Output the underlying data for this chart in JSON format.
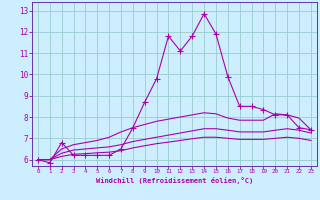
{
  "xlabel": "Windchill (Refroidissement éolien,°C)",
  "bg_color": "#cceeff",
  "line_color": "#aa00aa",
  "grid_color": "#99cccc",
  "spine_color": "#6633aa",
  "xlim": [
    -0.5,
    23.5
  ],
  "ylim": [
    5.7,
    13.4
  ],
  "xticks": [
    0,
    1,
    2,
    3,
    4,
    5,
    6,
    7,
    8,
    9,
    10,
    11,
    12,
    13,
    14,
    15,
    16,
    17,
    18,
    19,
    20,
    21,
    22,
    23
  ],
  "yticks": [
    6,
    7,
    8,
    9,
    10,
    11,
    12,
    13
  ],
  "series": [
    {
      "marker": true,
      "x": [
        0,
        1,
        2,
        3,
        4,
        5,
        6,
        7,
        8,
        9,
        10,
        11,
        12,
        13,
        14,
        15,
        16,
        17,
        18,
        19,
        20,
        21,
        22,
        23
      ],
      "y": [
        6.0,
        5.85,
        6.8,
        6.2,
        6.2,
        6.2,
        6.2,
        6.5,
        7.5,
        8.7,
        9.8,
        11.8,
        11.1,
        11.8,
        12.85,
        11.9,
        9.9,
        8.5,
        8.5,
        8.35,
        8.1,
        8.1,
        7.5,
        7.4
      ]
    },
    {
      "marker": false,
      "x": [
        0,
        1,
        2,
        3,
        4,
        5,
        6,
        7,
        8,
        9,
        10,
        11,
        12,
        13,
        14,
        15,
        16,
        17,
        18,
        19,
        20,
        21,
        22,
        23
      ],
      "y": [
        6.0,
        6.0,
        6.5,
        6.7,
        6.8,
        6.9,
        7.05,
        7.3,
        7.5,
        7.65,
        7.8,
        7.9,
        8.0,
        8.1,
        8.2,
        8.15,
        7.95,
        7.85,
        7.85,
        7.85,
        8.15,
        8.1,
        7.95,
        7.4
      ]
    },
    {
      "marker": false,
      "x": [
        0,
        1,
        2,
        3,
        4,
        5,
        6,
        7,
        8,
        9,
        10,
        11,
        12,
        13,
        14,
        15,
        16,
        17,
        18,
        19,
        20,
        21,
        22,
        23
      ],
      "y": [
        6.0,
        6.0,
        6.3,
        6.45,
        6.5,
        6.55,
        6.6,
        6.7,
        6.85,
        6.95,
        7.05,
        7.15,
        7.25,
        7.35,
        7.45,
        7.45,
        7.38,
        7.3,
        7.3,
        7.3,
        7.38,
        7.45,
        7.38,
        7.25
      ]
    },
    {
      "marker": false,
      "x": [
        0,
        1,
        2,
        3,
        4,
        5,
        6,
        7,
        8,
        9,
        10,
        11,
        12,
        13,
        14,
        15,
        16,
        17,
        18,
        19,
        20,
        21,
        22,
        23
      ],
      "y": [
        6.0,
        6.0,
        6.15,
        6.25,
        6.28,
        6.32,
        6.35,
        6.42,
        6.55,
        6.65,
        6.75,
        6.82,
        6.9,
        6.98,
        7.05,
        7.05,
        7.0,
        6.95,
        6.95,
        6.95,
        7.0,
        7.05,
        7.0,
        6.9
      ]
    }
  ]
}
